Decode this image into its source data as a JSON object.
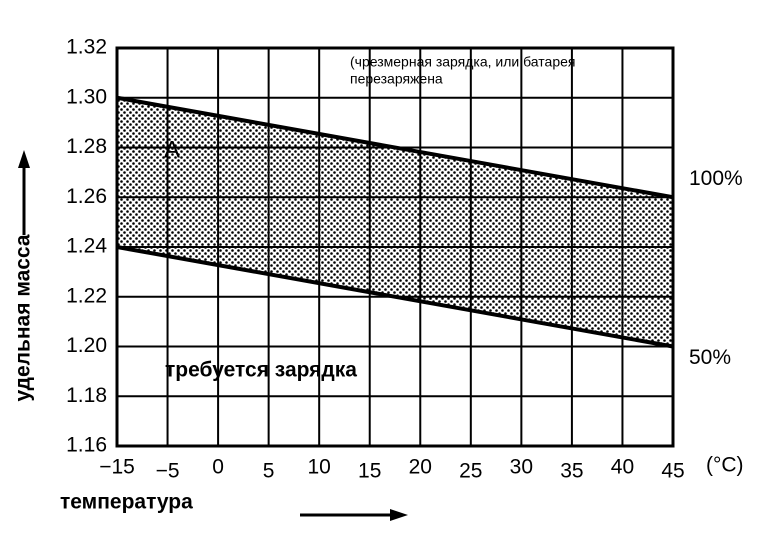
{
  "chart_data": {
    "type": "line",
    "x_label": "температура",
    "x_unit": "(°C)",
    "y_label": "удельная масса",
    "annotations": [
      "(чрезмерная зарядка, или батарея",
      "перезаряжена",
      "A",
      "требуется зарядка"
    ],
    "x": [
      -15,
      45
    ],
    "series": [
      {
        "name": "100%",
        "color": "#000000",
        "values": [
          1.3,
          1.26
        ]
      },
      {
        "name": "50%",
        "color": "#000000",
        "values": [
          1.24,
          1.2
        ]
      }
    ],
    "xlim": [
      -15,
      45
    ],
    "xticks": [
      {
        "value": -15,
        "label": "−15"
      },
      {
        "value": -5,
        "label": "−5"
      },
      0,
      5,
      10,
      15,
      20,
      25,
      30,
      35,
      40,
      45
    ],
    "ylim": [
      1.16,
      1.32
    ],
    "yticks": [
      1.16,
      1.18,
      {
        "value": 1.2,
        "label": "1.20"
      },
      1.22,
      1.24,
      1.26,
      1.28,
      {
        "value": 1.3,
        "label": "1.30"
      },
      1.32
    ],
    "grid": true
  }
}
